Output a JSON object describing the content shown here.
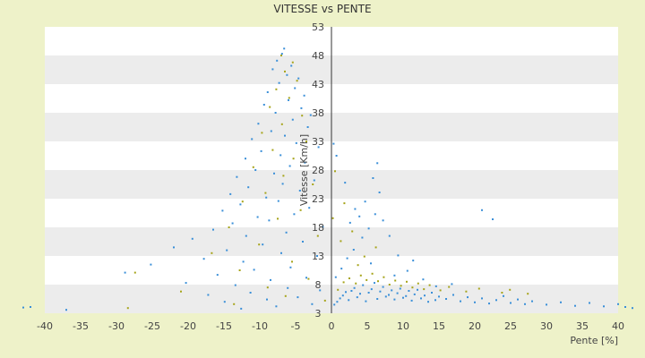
{
  "chart_data": {
    "type": "scatter",
    "title": "VITESSE vs PENTE",
    "xlabel": "Pente [%]",
    "ylabel": "Vitesse [Km/h]",
    "xlim": [
      -40,
      40
    ],
    "ylim": [
      3,
      53
    ],
    "x_ticks": [
      "-40",
      "-35",
      "-30",
      "-25",
      "-20",
      "-15",
      "-10",
      "-5",
      "0",
      "5",
      "10",
      "15",
      "20",
      "25",
      "30",
      "35",
      "40"
    ],
    "y_ticks": [
      "3",
      "8",
      "13",
      "18",
      "23",
      "28",
      "33",
      "38",
      "43",
      "48",
      "53"
    ],
    "grid": "horizontal bands",
    "legend": "none",
    "colors": {
      "series_a": "#3a8fd8",
      "series_b": "#a6a419",
      "band": "#ececec",
      "plot_bg": "#ffffff"
    },
    "series": [
      {
        "color": "#3a8fd8",
        "points": [
          [
            -6.6,
            49.2
          ],
          [
            -6.9,
            48.3
          ],
          [
            -7.6,
            47.1
          ],
          [
            -5.6,
            46.2
          ],
          [
            -8.2,
            45.6
          ],
          [
            -6.2,
            44.6
          ],
          [
            -4.6,
            44.0
          ],
          [
            -7.3,
            43.2
          ],
          [
            -5.1,
            42.3
          ],
          [
            -8.9,
            41.6
          ],
          [
            -3.8,
            41.0
          ],
          [
            -6.0,
            40.2
          ],
          [
            -9.4,
            39.4
          ],
          [
            -4.2,
            38.8
          ],
          [
            -7.8,
            38.0
          ],
          [
            -2.9,
            37.6
          ],
          [
            -5.4,
            36.8
          ],
          [
            -10.2,
            36.1
          ],
          [
            -3.3,
            35.5
          ],
          [
            -8.4,
            34.8
          ],
          [
            -6.5,
            34.0
          ],
          [
            -11.1,
            33.4
          ],
          [
            -4.9,
            32.7
          ],
          [
            -1.8,
            32.0
          ],
          [
            -9.8,
            31.3
          ],
          [
            -7.1,
            30.6
          ],
          [
            -12.0,
            30.0
          ],
          [
            -3.7,
            29.3
          ],
          [
            -5.8,
            28.7
          ],
          [
            -10.6,
            28.0
          ],
          [
            -8.0,
            27.4
          ],
          [
            -13.2,
            26.8
          ],
          [
            -2.4,
            26.2
          ],
          [
            -6.8,
            25.6
          ],
          [
            -11.6,
            25.0
          ],
          [
            -4.4,
            24.4
          ],
          [
            -14.1,
            23.8
          ],
          [
            -9.1,
            23.2
          ],
          [
            -7.4,
            22.6
          ],
          [
            -12.7,
            22.0
          ],
          [
            -3.1,
            21.4
          ],
          [
            -15.2,
            20.9
          ],
          [
            -5.2,
            20.3
          ],
          [
            -10.3,
            19.8
          ],
          [
            -8.7,
            19.2
          ],
          [
            -13.8,
            18.7
          ],
          [
            -1.2,
            18.1
          ],
          [
            -16.5,
            17.6
          ],
          [
            -6.3,
            17.1
          ],
          [
            -11.9,
            16.5
          ],
          [
            -19.4,
            16.0
          ],
          [
            -4.0,
            15.5
          ],
          [
            -9.6,
            15.0
          ],
          [
            -22.0,
            14.5
          ],
          [
            -14.6,
            14.0
          ],
          [
            -7.0,
            13.5
          ],
          [
            -2.0,
            13.0
          ],
          [
            -17.8,
            12.5
          ],
          [
            -12.3,
            12.0
          ],
          [
            -25.2,
            11.5
          ],
          [
            -5.7,
            11.0
          ],
          [
            -10.8,
            10.6
          ],
          [
            -28.8,
            10.1
          ],
          [
            -15.9,
            9.7
          ],
          [
            -3.5,
            9.2
          ],
          [
            -8.5,
            8.8
          ],
          [
            -20.3,
            8.3
          ],
          [
            -13.4,
            7.9
          ],
          [
            -6.1,
            7.4
          ],
          [
            -1.6,
            7.0
          ],
          [
            -11.3,
            6.6
          ],
          [
            -17.2,
            6.2
          ],
          [
            -4.7,
            5.8
          ],
          [
            -9.0,
            5.4
          ],
          [
            -14.9,
            5.0
          ],
          [
            -2.7,
            4.6
          ],
          [
            -7.7,
            4.2
          ],
          [
            -12.6,
            3.8
          ],
          [
            -37.0,
            3.6
          ],
          [
            -43.0,
            4.0
          ],
          [
            -42.0,
            4.1
          ],
          [
            0.4,
            4.5
          ],
          [
            0.8,
            5.0
          ],
          [
            1.2,
            5.6
          ],
          [
            1.6,
            6.1
          ],
          [
            2.0,
            6.7
          ],
          [
            2.4,
            5.3
          ],
          [
            2.8,
            6.9
          ],
          [
            3.2,
            7.4
          ],
          [
            3.6,
            5.8
          ],
          [
            4.0,
            6.4
          ],
          [
            4.4,
            7.9
          ],
          [
            4.8,
            5.1
          ],
          [
            5.2,
            6.6
          ],
          [
            5.6,
            7.2
          ],
          [
            6.0,
            8.3
          ],
          [
            6.4,
            5.5
          ],
          [
            6.8,
            6.8
          ],
          [
            7.2,
            7.6
          ],
          [
            7.6,
            5.9
          ],
          [
            8.0,
            6.2
          ],
          [
            8.4,
            7.0
          ],
          [
            8.8,
            5.4
          ],
          [
            9.2,
            6.5
          ],
          [
            9.6,
            7.3
          ],
          [
            10.0,
            5.7
          ],
          [
            10.4,
            6.0
          ],
          [
            10.8,
            6.9
          ],
          [
            11.2,
            5.2
          ],
          [
            11.6,
            6.3
          ],
          [
            12.0,
            7.1
          ],
          [
            12.5,
            5.6
          ],
          [
            13.0,
            6.1
          ],
          [
            13.5,
            5.0
          ],
          [
            14.0,
            6.6
          ],
          [
            14.5,
            5.3
          ],
          [
            15.0,
            5.9
          ],
          [
            16.0,
            5.5
          ],
          [
            17.0,
            6.2
          ],
          [
            18.0,
            5.1
          ],
          [
            19.0,
            5.8
          ],
          [
            20.0,
            4.9
          ],
          [
            21.0,
            5.6
          ],
          [
            22.0,
            4.7
          ],
          [
            23.0,
            5.3
          ],
          [
            24.0,
            6.0
          ],
          [
            25.0,
            4.8
          ],
          [
            26.0,
            5.4
          ],
          [
            27.0,
            4.6
          ],
          [
            28.0,
            5.1
          ],
          [
            30.0,
            4.5
          ],
          [
            32.0,
            4.9
          ],
          [
            34.0,
            4.3
          ],
          [
            36.0,
            4.8
          ],
          [
            38.0,
            4.2
          ],
          [
            40.0,
            4.6
          ],
          [
            41.0,
            4.1
          ],
          [
            42.0,
            3.9
          ],
          [
            0.6,
            9.3
          ],
          [
            1.4,
            10.8
          ],
          [
            2.2,
            12.6
          ],
          [
            3.1,
            14.1
          ],
          [
            4.3,
            16.2
          ],
          [
            5.2,
            17.8
          ],
          [
            6.1,
            20.3
          ],
          [
            6.7,
            24.1
          ],
          [
            6.4,
            29.2
          ],
          [
            5.8,
            26.6
          ],
          [
            7.2,
            19.2
          ],
          [
            8.1,
            16.5
          ],
          [
            9.3,
            13.1
          ],
          [
            10.6,
            10.4
          ],
          [
            11.4,
            12.2
          ],
          [
            4.7,
            22.5
          ],
          [
            3.3,
            21.2
          ],
          [
            1.9,
            25.8
          ],
          [
            0.7,
            30.5
          ],
          [
            0.3,
            32.6
          ],
          [
            21.0,
            21.0
          ],
          [
            22.5,
            19.4
          ],
          [
            2.6,
            18.8
          ],
          [
            3.9,
            19.9
          ],
          [
            5.5,
            11.7
          ],
          [
            8.8,
            9.6
          ],
          [
            12.8,
            8.9
          ],
          [
            14.6,
            7.7
          ],
          [
            16.8,
            8.1
          ]
        ]
      },
      {
        "color": "#a6a419",
        "points": [
          [
            -7.0,
            48.0
          ],
          [
            -5.4,
            46.8
          ],
          [
            -6.5,
            45.2
          ],
          [
            -4.8,
            43.6
          ],
          [
            -7.7,
            42.1
          ],
          [
            -5.9,
            40.6
          ],
          [
            -8.6,
            39.0
          ],
          [
            -4.1,
            37.5
          ],
          [
            -6.9,
            36.0
          ],
          [
            -9.7,
            34.5
          ],
          [
            -3.5,
            33.0
          ],
          [
            -8.2,
            31.5
          ],
          [
            -5.3,
            30.0
          ],
          [
            -10.9,
            28.5
          ],
          [
            -6.7,
            27.0
          ],
          [
            -2.6,
            25.5
          ],
          [
            -9.2,
            24.0
          ],
          [
            -12.4,
            22.5
          ],
          [
            -4.3,
            21.0
          ],
          [
            -7.5,
            19.5
          ],
          [
            -14.3,
            18.0
          ],
          [
            -1.9,
            16.5
          ],
          [
            -10.1,
            15.0
          ],
          [
            -16.7,
            13.5
          ],
          [
            -5.5,
            12.0
          ],
          [
            -12.8,
            10.5
          ],
          [
            -27.4,
            10.1
          ],
          [
            -3.2,
            9.0
          ],
          [
            -8.9,
            7.5
          ],
          [
            -21.0,
            6.8
          ],
          [
            -6.4,
            6.0
          ],
          [
            -0.9,
            5.2
          ],
          [
            -13.6,
            4.6
          ],
          [
            -28.4,
            3.9
          ],
          [
            0.9,
            7.1
          ],
          [
            1.7,
            8.4
          ],
          [
            2.5,
            9.1
          ],
          [
            3.4,
            8.2
          ],
          [
            4.1,
            9.6
          ],
          [
            4.9,
            8.8
          ],
          [
            5.7,
            9.9
          ],
          [
            6.5,
            8.6
          ],
          [
            7.3,
            9.3
          ],
          [
            8.1,
            8.0
          ],
          [
            8.9,
            8.7
          ],
          [
            9.7,
            7.8
          ],
          [
            10.5,
            8.5
          ],
          [
            11.3,
            7.5
          ],
          [
            12.1,
            8.2
          ],
          [
            12.9,
            7.2
          ],
          [
            13.7,
            7.9
          ],
          [
            15.2,
            7.0
          ],
          [
            16.4,
            7.6
          ],
          [
            18.8,
            6.8
          ],
          [
            20.6,
            7.3
          ],
          [
            23.8,
            6.6
          ],
          [
            24.9,
            7.1
          ],
          [
            27.4,
            6.4
          ],
          [
            1.3,
            15.6
          ],
          [
            2.9,
            17.3
          ],
          [
            4.6,
            12.9
          ],
          [
            6.2,
            14.5
          ],
          [
            0.5,
            27.8
          ],
          [
            1.8,
            22.2
          ],
          [
            0.2,
            19.6
          ],
          [
            3.7,
            11.4
          ]
        ]
      }
    ]
  }
}
